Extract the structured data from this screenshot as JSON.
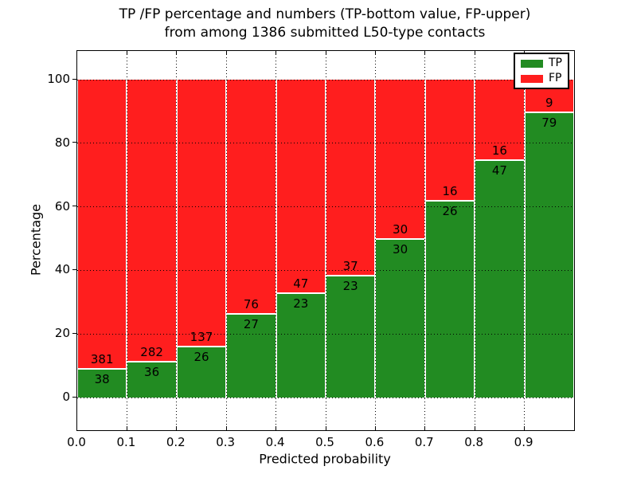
{
  "figure": {
    "title_line1": "TP /FP percentage and numbers (TP-bottom value, FP-upper)",
    "title_line2": "from among 1386 submitted L50-type contacts"
  },
  "chart_data": {
    "type": "bar",
    "stacked": true,
    "title": "TP /FP percentage and numbers (TP-bottom value, FP-upper) from among 1386 submitted L50-type contacts",
    "xlabel": "Predicted probability",
    "ylabel": "Percentage",
    "x_tick_labels": [
      "0.0",
      "0.1",
      "0.2",
      "0.3",
      "0.4",
      "0.5",
      "0.6",
      "0.7",
      "0.8",
      "0.9"
    ],
    "y_tick_values": [
      0,
      20,
      40,
      60,
      80,
      100
    ],
    "y_tick_labels": [
      "0",
      "20",
      "40",
      "60",
      "80",
      "100"
    ],
    "xlim": [
      0.0,
      1.0
    ],
    "ylim": [
      -10.5,
      109
    ],
    "bin_width": 0.1,
    "grid": true,
    "bars_normalized_to": 100,
    "series": [
      {
        "name": "TP",
        "color": "#228B22",
        "values": [
          38,
          36,
          26,
          27,
          23,
          23,
          30,
          26,
          47,
          79
        ]
      },
      {
        "name": "FP",
        "color": "#FF1E1E",
        "values": [
          381,
          282,
          137,
          76,
          47,
          37,
          30,
          16,
          16,
          9
        ]
      }
    ],
    "tp_percent_per_bin": [
      9.07,
      11.32,
      15.95,
      26.21,
      32.86,
      38.33,
      50.0,
      61.9,
      74.6,
      89.77
    ],
    "legend": {
      "position": "upper-right",
      "entries": [
        {
          "label": "TP",
          "color": "#228B22"
        },
        {
          "label": "FP",
          "color": "#FF1E1E"
        }
      ]
    }
  }
}
